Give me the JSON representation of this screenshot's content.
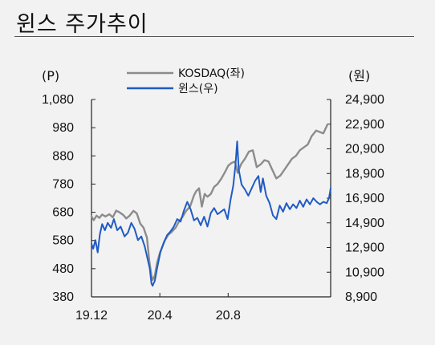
{
  "page": {
    "title": "윈스 주가추이"
  },
  "chart_data": {
    "type": "line",
    "left_unit": "(P)",
    "right_unit": "(원)",
    "left_axis": {
      "min": 380,
      "max": 1080,
      "ticks": [
        "1,080",
        "980",
        "880",
        "780",
        "680",
        "580",
        "480",
        "380"
      ]
    },
    "right_axis": {
      "min": 8900,
      "max": 24900,
      "ticks": [
        "24,900",
        "22,900",
        "20,900",
        "18,900",
        "16,900",
        "14,900",
        "12,900",
        "10,900",
        "8,900"
      ]
    },
    "x_axis": {
      "start": "2019-12-01",
      "end": "2021-01-31",
      "tick_labels": [
        "19.12",
        "20.4",
        "20.8"
      ],
      "tick_dates": [
        "2019-12-01",
        "2020-04-01",
        "2020-08-01"
      ]
    },
    "series": [
      {
        "name": "KOSDAQ(좌)",
        "axis": "left",
        "color": "#8c8c8c",
        "points": [
          [
            "2019-12-01",
            665
          ],
          [
            "2019-12-05",
            652
          ],
          [
            "2019-12-10",
            668
          ],
          [
            "2019-12-15",
            660
          ],
          [
            "2019-12-20",
            672
          ],
          [
            "2019-12-26",
            665
          ],
          [
            "2020-01-02",
            673
          ],
          [
            "2020-01-08",
            662
          ],
          [
            "2020-01-14",
            686
          ],
          [
            "2020-01-20",
            680
          ],
          [
            "2020-01-27",
            670
          ],
          [
            "2020-02-01",
            658
          ],
          [
            "2020-02-07",
            668
          ],
          [
            "2020-02-14",
            685
          ],
          [
            "2020-02-20",
            676
          ],
          [
            "2020-02-26",
            640
          ],
          [
            "2020-03-03",
            625
          ],
          [
            "2020-03-09",
            590
          ],
          [
            "2020-03-13",
            510
          ],
          [
            "2020-03-17",
            455
          ],
          [
            "2020-03-19",
            440
          ],
          [
            "2020-03-23",
            455
          ],
          [
            "2020-03-27",
            500
          ],
          [
            "2020-04-01",
            535
          ],
          [
            "2020-04-06",
            560
          ],
          [
            "2020-04-10",
            580
          ],
          [
            "2020-04-16",
            600
          ],
          [
            "2020-04-22",
            610
          ],
          [
            "2020-04-29",
            625
          ],
          [
            "2020-05-06",
            650
          ],
          [
            "2020-05-12",
            665
          ],
          [
            "2020-05-18",
            685
          ],
          [
            "2020-05-25",
            700
          ],
          [
            "2020-06-01",
            740
          ],
          [
            "2020-06-05",
            755
          ],
          [
            "2020-06-10",
            765
          ],
          [
            "2020-06-15",
            700
          ],
          [
            "2020-06-20",
            745
          ],
          [
            "2020-06-25",
            735
          ],
          [
            "2020-07-01",
            745
          ],
          [
            "2020-07-07",
            770
          ],
          [
            "2020-07-13",
            780
          ],
          [
            "2020-07-20",
            800
          ],
          [
            "2020-07-27",
            825
          ],
          [
            "2020-08-01",
            845
          ],
          [
            "2020-08-07",
            855
          ],
          [
            "2020-08-13",
            860
          ],
          [
            "2020-08-18",
            820
          ],
          [
            "2020-08-24",
            850
          ],
          [
            "2020-08-31",
            870
          ],
          [
            "2020-09-07",
            895
          ],
          [
            "2020-09-14",
            900
          ],
          [
            "2020-09-21",
            840
          ],
          [
            "2020-09-28",
            850
          ],
          [
            "2020-10-05",
            865
          ],
          [
            "2020-10-12",
            860
          ],
          [
            "2020-10-19",
            830
          ],
          [
            "2020-10-26",
            800
          ],
          [
            "2020-11-02",
            810
          ],
          [
            "2020-11-09",
            830
          ],
          [
            "2020-11-16",
            850
          ],
          [
            "2020-11-23",
            870
          ],
          [
            "2020-11-30",
            880
          ],
          [
            "2020-12-07",
            900
          ],
          [
            "2020-12-14",
            910
          ],
          [
            "2020-12-21",
            920
          ],
          [
            "2020-12-28",
            950
          ],
          [
            "2021-01-05",
            970
          ],
          [
            "2021-01-11",
            965
          ],
          [
            "2021-01-18",
            960
          ],
          [
            "2021-01-25",
            990
          ]
        ]
      },
      {
        "name": "윈스(우)",
        "axis": "right",
        "color": "#1f5bc4",
        "points": [
          [
            "2019-12-01",
            13200
          ],
          [
            "2019-12-04",
            12800
          ],
          [
            "2019-12-08",
            13500
          ],
          [
            "2019-12-12",
            12500
          ],
          [
            "2019-12-16",
            14000
          ],
          [
            "2019-12-20",
            14800
          ],
          [
            "2019-12-25",
            14300
          ],
          [
            "2019-12-30",
            14900
          ],
          [
            "2020-01-05",
            14500
          ],
          [
            "2020-01-10",
            15200
          ],
          [
            "2020-01-16",
            14300
          ],
          [
            "2020-01-22",
            14600
          ],
          [
            "2020-01-29",
            13800
          ],
          [
            "2020-02-04",
            14100
          ],
          [
            "2020-02-10",
            14900
          ],
          [
            "2020-02-16",
            14400
          ],
          [
            "2020-02-22",
            13500
          ],
          [
            "2020-02-28",
            13800
          ],
          [
            "2020-03-05",
            13000
          ],
          [
            "2020-03-10",
            12000
          ],
          [
            "2020-03-14",
            11200
          ],
          [
            "2020-03-17",
            10000
          ],
          [
            "2020-03-19",
            9800
          ],
          [
            "2020-03-23",
            10200
          ],
          [
            "2020-03-27",
            11200
          ],
          [
            "2020-04-02",
            12500
          ],
          [
            "2020-04-08",
            13300
          ],
          [
            "2020-04-14",
            13900
          ],
          [
            "2020-04-20",
            14200
          ],
          [
            "2020-04-26",
            14600
          ],
          [
            "2020-05-02",
            15200
          ],
          [
            "2020-05-08",
            15000
          ],
          [
            "2020-05-14",
            15900
          ],
          [
            "2020-05-20",
            16600
          ],
          [
            "2020-05-26",
            16000
          ],
          [
            "2020-06-01",
            15100
          ],
          [
            "2020-06-07",
            15300
          ],
          [
            "2020-06-13",
            14700
          ],
          [
            "2020-06-19",
            15400
          ],
          [
            "2020-06-25",
            14600
          ],
          [
            "2020-07-01",
            15700
          ],
          [
            "2020-07-07",
            16100
          ],
          [
            "2020-07-13",
            15600
          ],
          [
            "2020-07-19",
            15800
          ],
          [
            "2020-07-25",
            16000
          ],
          [
            "2020-07-31",
            15200
          ],
          [
            "2020-08-05",
            16700
          ],
          [
            "2020-08-10",
            17900
          ],
          [
            "2020-08-14",
            19600
          ],
          [
            "2020-08-17",
            21500
          ],
          [
            "2020-08-20",
            19200
          ],
          [
            "2020-08-25",
            18000
          ],
          [
            "2020-08-31",
            17600
          ],
          [
            "2020-09-06",
            17100
          ],
          [
            "2020-09-12",
            17700
          ],
          [
            "2020-09-18",
            18300
          ],
          [
            "2020-09-24",
            18700
          ],
          [
            "2020-09-28",
            17400
          ],
          [
            "2020-10-02",
            18500
          ],
          [
            "2020-10-08",
            17100
          ],
          [
            "2020-10-14",
            16500
          ],
          [
            "2020-10-20",
            15500
          ],
          [
            "2020-10-26",
            15200
          ],
          [
            "2020-11-01",
            16300
          ],
          [
            "2020-11-07",
            15800
          ],
          [
            "2020-11-13",
            16500
          ],
          [
            "2020-11-19",
            16000
          ],
          [
            "2020-11-25",
            16400
          ],
          [
            "2020-12-01",
            16100
          ],
          [
            "2020-12-07",
            16700
          ],
          [
            "2020-12-13",
            16200
          ],
          [
            "2020-12-19",
            16800
          ],
          [
            "2020-12-25",
            16400
          ],
          [
            "2020-12-31",
            16900
          ],
          [
            "2021-01-06",
            16600
          ],
          [
            "2021-01-12",
            16400
          ],
          [
            "2021-01-18",
            16600
          ],
          [
            "2021-01-24",
            16500
          ],
          [
            "2021-01-28",
            16900
          ],
          [
            "2021-01-31",
            17700
          ]
        ]
      }
    ],
    "legend": {
      "placement": "top-center"
    },
    "grid": false
  }
}
